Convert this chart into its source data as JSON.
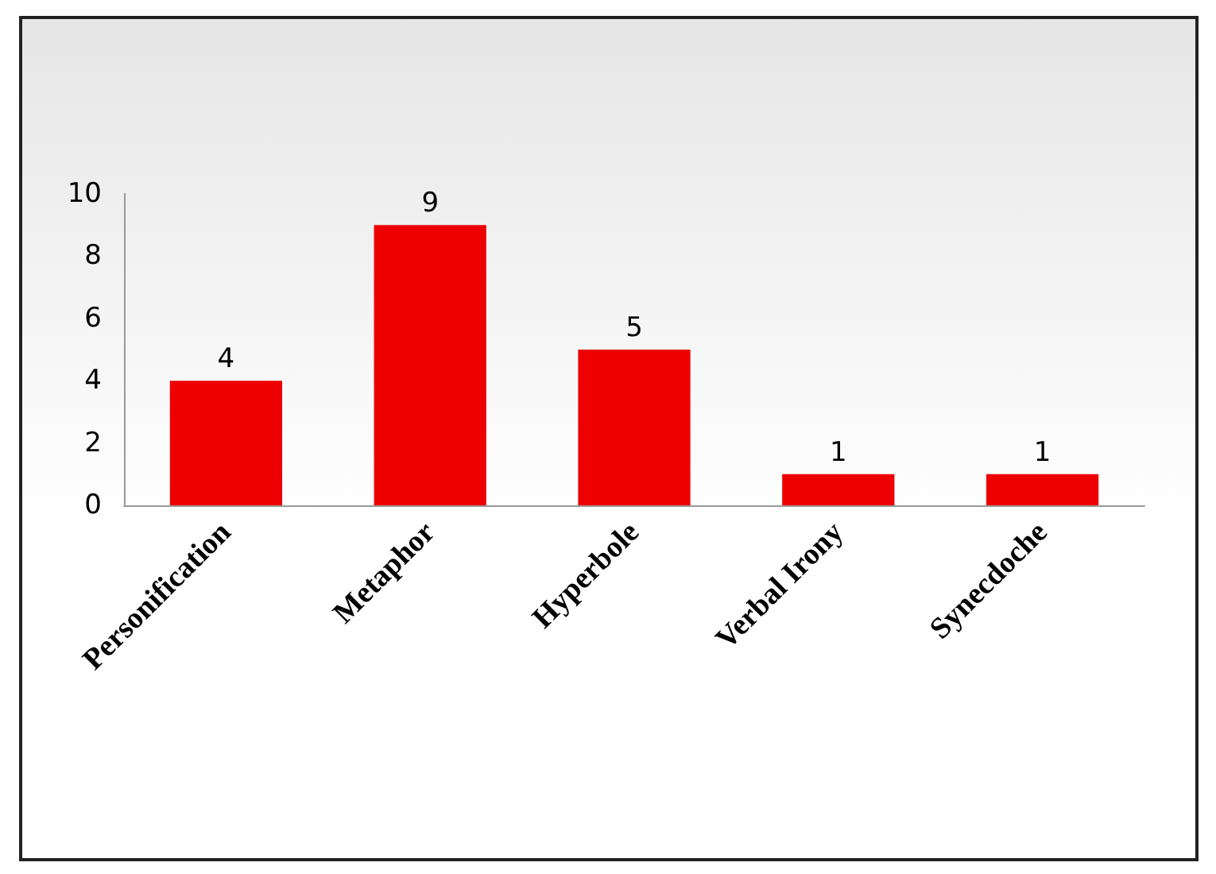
{
  "chart_data": {
    "type": "bar",
    "categories": [
      "Personification",
      "Metaphor",
      "Hyperbole",
      "Verbal Irony",
      "Synecdoche"
    ],
    "values": [
      4,
      9,
      5,
      1,
      1
    ],
    "color": "#ee0000",
    "ylim": [
      0,
      10
    ],
    "yticks": [
      0,
      2,
      4,
      6,
      8,
      10
    ],
    "grid": false,
    "data_labels": true
  }
}
